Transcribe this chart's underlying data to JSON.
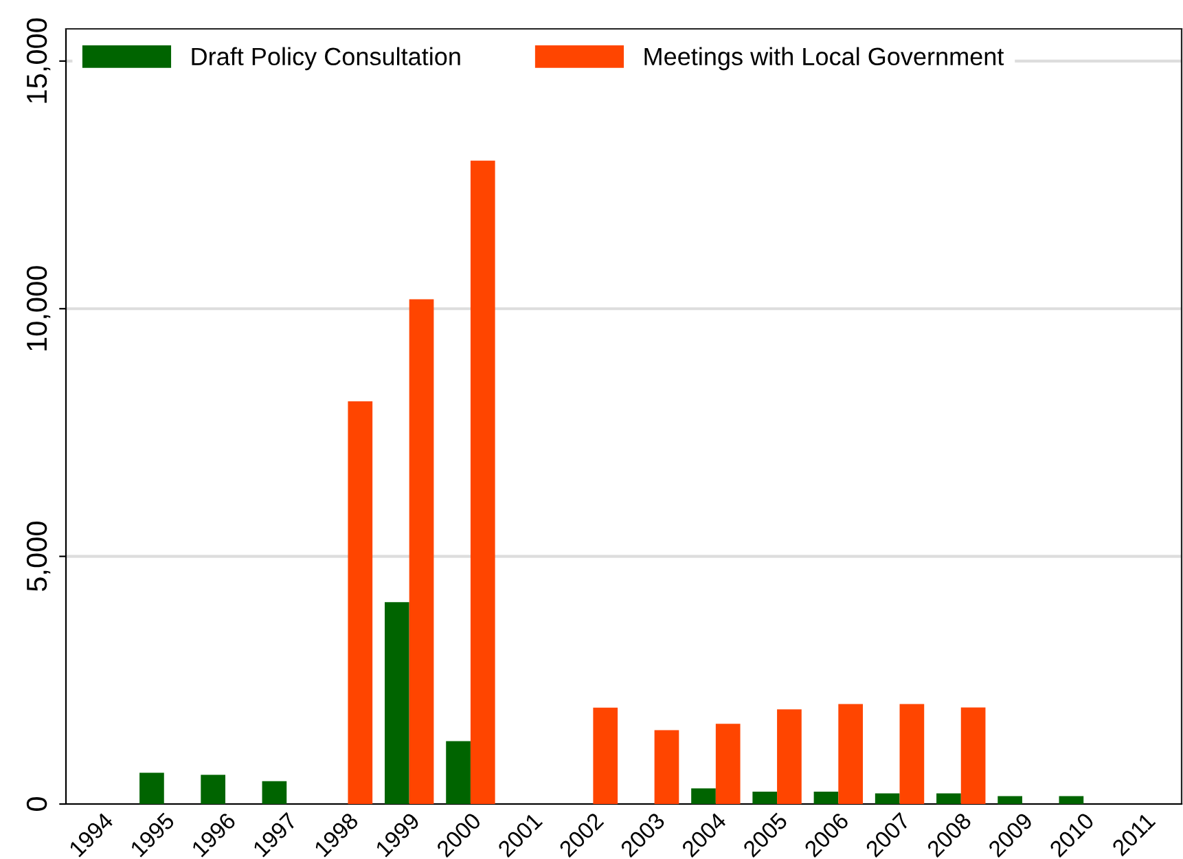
{
  "chart_data": {
    "type": "bar",
    "categories": [
      "1994",
      "1995",
      "1996",
      "1997",
      "1998",
      "1999",
      "2000",
      "2001",
      "2002",
      "2003",
      "2004",
      "2005",
      "2006",
      "2007",
      "2008",
      "2009",
      "2010",
      "2011"
    ],
    "series": [
      {
        "name": "Draft Policy Consultation",
        "color": "#006400",
        "values": [
          0,
          630,
          590,
          460,
          0,
          4075,
          1270,
          0,
          0,
          0,
          315,
          250,
          250,
          215,
          215,
          160,
          160,
          0
        ]
      },
      {
        "name": "Meetings with Local Government",
        "color": "#ff4500",
        "values": [
          0,
          0,
          0,
          0,
          8130,
          10190,
          12990,
          0,
          1945,
          1490,
          1620,
          1910,
          2020,
          2020,
          1950,
          0,
          0,
          0
        ]
      }
    ],
    "ylim": [
      0,
      15650
    ],
    "yticks": [
      {
        "value": 0,
        "label": "0"
      },
      {
        "value": 5000,
        "label": "5,000"
      },
      {
        "value": 10000,
        "label": "10,000"
      },
      {
        "value": 15000,
        "label": "15,000"
      }
    ],
    "grid": "y",
    "legend": "top"
  }
}
